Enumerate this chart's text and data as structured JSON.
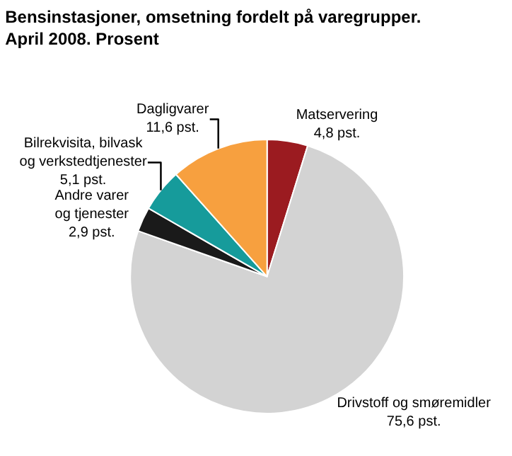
{
  "chart_data": {
    "type": "pie",
    "title": "Bensinstasjoner, omsetning fordelt på varegrupper.\nApril 2008. Prosent",
    "categories": [
      "Matservering",
      "Drivstoff og smøremidler",
      "Andre varer\nog tjenester",
      "Bilrekvisita, bilvask\nog verkstedtjenester",
      "Dagligvarer"
    ],
    "values": [
      4.8,
      75.6,
      2.9,
      5.1,
      11.6
    ],
    "value_labels": [
      "4,8 pst.",
      "75,6 pst.",
      "2,9 pst.",
      "5,1 pst.",
      "11,6 pst."
    ],
    "colors": [
      "#9b1b20",
      "#d3d3d3",
      "#1a1a1a",
      "#169b9b",
      "#f7a03f"
    ],
    "legend": false
  }
}
